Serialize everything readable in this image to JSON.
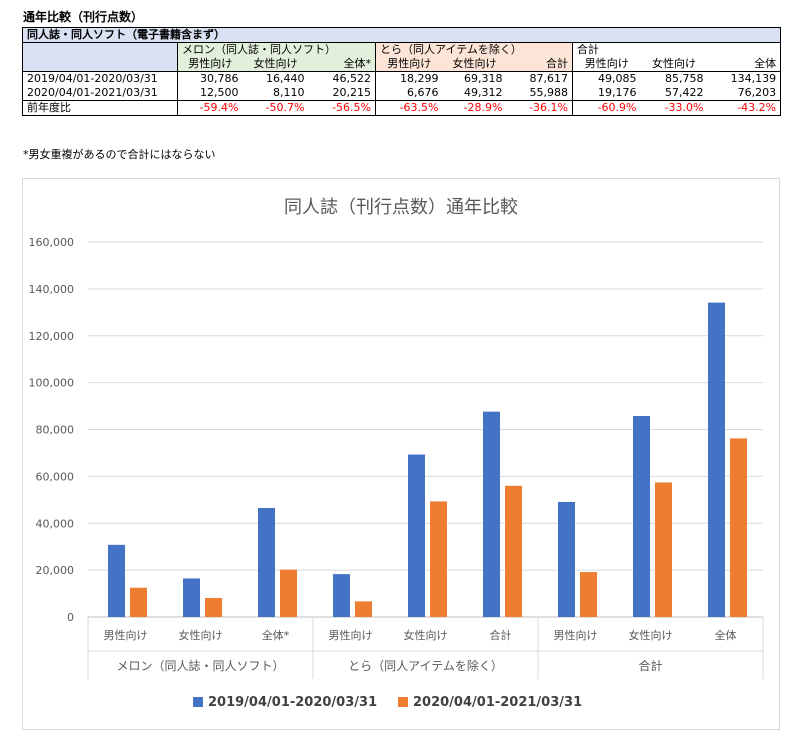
{
  "table": {
    "title": "通年比較（刊行点数）",
    "main_header": "同人誌・同人ソフト（電子書籍含まず）",
    "groups": [
      {
        "label": "メロン（同人誌・同人ソフト）",
        "cols": [
          "男性向け",
          "女性向け",
          "全体*"
        ]
      },
      {
        "label": "とら（同人アイテムを除く）",
        "cols": [
          "男性向け",
          "女性向け",
          "合計"
        ]
      },
      {
        "label": "合計",
        "cols": [
          "男性向け",
          "女性向け",
          "全体"
        ]
      }
    ],
    "rows": [
      {
        "label": "2019/04/01-2020/03/31",
        "values": [
          "30,786",
          "16,440",
          "46,522",
          "18,299",
          "69,318",
          "87,617",
          "49,085",
          "85,758",
          "134,139"
        ]
      },
      {
        "label": "2020/04/01-2021/03/31",
        "values": [
          "12,500",
          "8,110",
          "20,215",
          "6,676",
          "49,312",
          "55,988",
          "19,176",
          "57,422",
          "76,203"
        ]
      },
      {
        "label": "前年度比",
        "values": [
          "-59.4%",
          "-50.7%",
          "-56.5%",
          "-63.5%",
          "-28.9%",
          "-36.1%",
          "-60.9%",
          "-33.0%",
          "-43.2%"
        ]
      }
    ],
    "note": "*男女重複があるので合計にはならない"
  },
  "chart_data": {
    "type": "bar",
    "title": "同人誌（刊行点数）通年比較",
    "categories": [
      "男性向け",
      "女性向け",
      "全体*",
      "男性向け",
      "女性向け",
      "合計",
      "男性向け",
      "女性向け",
      "全体"
    ],
    "groups": [
      {
        "label": "メロン（同人誌・同人ソフト）",
        "count": 3
      },
      {
        "label": "とら（同人アイテムを除く）",
        "count": 3
      },
      {
        "label": "合計",
        "count": 3
      }
    ],
    "series": [
      {
        "name": "2019/04/01-2020/03/31",
        "color": "#4472c4",
        "values": [
          30786,
          16440,
          46522,
          18299,
          69318,
          87617,
          49085,
          85758,
          134139
        ]
      },
      {
        "name": "2020/04/01-2021/03/31",
        "color": "#ed7d31",
        "values": [
          12500,
          8110,
          20215,
          6676,
          49312,
          55988,
          19176,
          57422,
          76203
        ]
      }
    ],
    "yticks": [
      "0",
      "20,000",
      "40,000",
      "60,000",
      "80,000",
      "100,000",
      "120,000",
      "140,000",
      "160,000"
    ],
    "ylim": [
      0,
      160000
    ],
    "grid": true,
    "legend": "bottom"
  }
}
